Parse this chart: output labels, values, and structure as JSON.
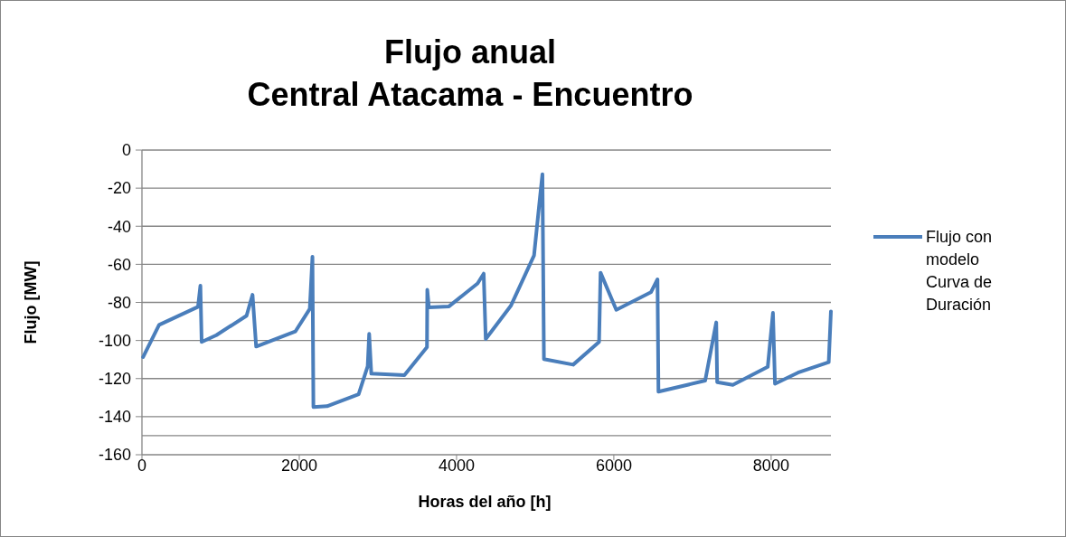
{
  "chart_data": {
    "type": "line",
    "title": "Flujo anual\nCentral Atacama - Encuentro",
    "xlabel": "Horas del año [h]",
    "ylabel": "Flujo [MW]",
    "xlim": [
      0,
      8760
    ],
    "xticks": [
      0,
      2000,
      4000,
      6000,
      8000
    ],
    "ylim": [
      -160,
      0
    ],
    "yticks": [
      0,
      -20,
      -40,
      -60,
      -80,
      -100,
      -120,
      -140,
      -160
    ],
    "grid": "y",
    "legend": "right",
    "marker": "none",
    "line_style": "solid",
    "ref_lines": [
      {
        "axis": "y",
        "value": -150,
        "color": "#868686"
      }
    ],
    "series": [
      {
        "name": "Flujo con modelo Curva de Duración",
        "color": "#4a7ebb",
        "x": [
          15,
          218,
          713,
          743,
          759,
          946,
          1330,
          1406,
          1452,
          1950,
          2134,
          2168,
          2180,
          2353,
          2755,
          2870,
          2889,
          2916,
          3337,
          3624,
          3628,
          3648,
          3904,
          4268,
          4345,
          4371,
          4690,
          4985,
          5061,
          5092,
          5111,
          5483,
          5812,
          5831,
          6031,
          6471,
          6555,
          6567,
          7161,
          7302,
          7314,
          7513,
          7957,
          8023,
          8049,
          8341,
          8732,
          8760
        ],
        "values": [
          -108.7,
          -91.8,
          -82.3,
          -71.2,
          -100.8,
          -97.2,
          -87,
          -76,
          -103.2,
          -95.3,
          -83.4,
          -56,
          -134.9,
          -134.5,
          -128.2,
          -113.5,
          -96.5,
          -117.4,
          -118.2,
          -103.5,
          -73.4,
          -82.6,
          -82.1,
          -70,
          -64.9,
          -99.2,
          -81.8,
          -55.4,
          -24.8,
          -12.7,
          -109.8,
          -112.7,
          -100.8,
          -64.4,
          -83.9,
          -74.7,
          -67.9,
          -126.9,
          -121.1,
          -90.5,
          -121.9,
          -123.3,
          -113.8,
          -85.5,
          -122.7,
          -116.9,
          -111.4,
          -84.7
        ]
      }
    ]
  }
}
